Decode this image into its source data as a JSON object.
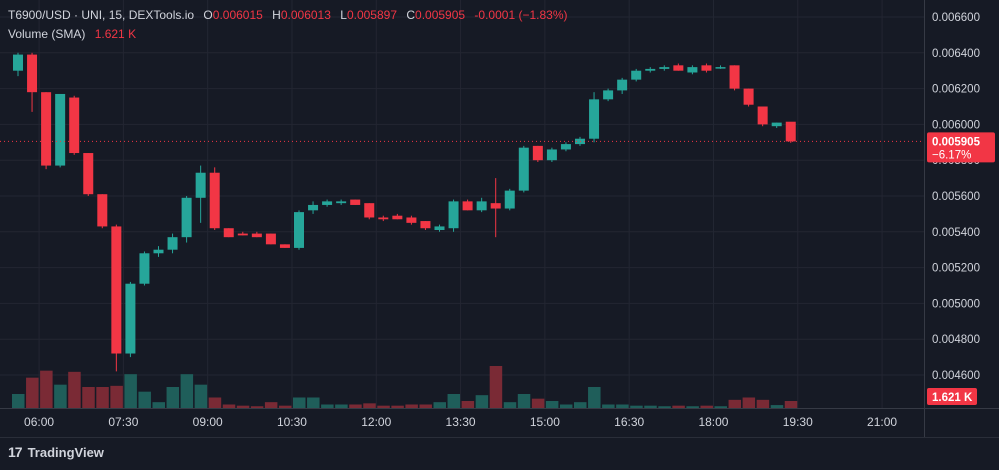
{
  "legend": {
    "symbol": "T6900/USD · UNI, 15, DEXTools.io",
    "o_label": "O",
    "o_value": "0.006015",
    "h_label": "H",
    "h_value": "0.006013",
    "l_label": "L",
    "l_value": "0.005897",
    "c_label": "C",
    "c_value": "0.005905",
    "change": "-0.0001 (−1.83%)",
    "volume_label": "Volume (SMA)",
    "volume_value": "1.621 K"
  },
  "branding": {
    "name": "TradingView",
    "icon": "tradingview-logo-icon"
  },
  "colors": {
    "up": "#26a69a",
    "down": "#f23645",
    "background": "#161a25",
    "grid": "#232632",
    "text": "#d1d4dc",
    "volume_up": "#1f5e5a",
    "volume_down": "#7a2a35"
  },
  "chart_data": {
    "type": "candlestick",
    "ylim": [
      0.0045,
      0.0066
    ],
    "y_ticks": [
      "0.004600",
      "0.004800",
      "0.005000",
      "0.005200",
      "0.005400",
      "0.005600",
      "0.005800",
      "0.006000",
      "0.006200",
      "0.006400",
      "0.006600"
    ],
    "x_ticks": [
      "06:00",
      "07:30",
      "09:00",
      "10:30",
      "12:00",
      "13:30",
      "15:00",
      "16:30",
      "18:00",
      "19:30",
      "21:00"
    ],
    "x_tick_index": [
      1.5,
      7.5,
      13.5,
      19.5,
      25.5,
      31.5,
      37.5,
      43.5,
      49.5,
      55.5,
      61.5
    ],
    "last_price_label": "0.005905",
    "last_change_label": "−6.17%",
    "volume_label": "1.621 K",
    "volume_max": 6.0,
    "candles": [
      {
        "o": 0.0063,
        "h": 0.0064,
        "l": 0.00627,
        "c": 0.00639,
        "v": 1.2
      },
      {
        "o": 0.00639,
        "h": 0.0064,
        "l": 0.00607,
        "c": 0.00618,
        "v": 2.6
      },
      {
        "o": 0.00618,
        "h": 0.00618,
        "l": 0.00575,
        "c": 0.00577,
        "v": 3.2
      },
      {
        "o": 0.00577,
        "h": 0.00617,
        "l": 0.00576,
        "c": 0.00617,
        "v": 2.0
      },
      {
        "o": 0.00615,
        "h": 0.00616,
        "l": 0.00583,
        "c": 0.00584,
        "v": 3.1
      },
      {
        "o": 0.00584,
        "h": 0.00584,
        "l": 0.0056,
        "c": 0.00561,
        "v": 1.8
      },
      {
        "o": 0.00561,
        "h": 0.00561,
        "l": 0.00542,
        "c": 0.00543,
        "v": 1.8
      },
      {
        "o": 0.00543,
        "h": 0.00544,
        "l": 0.00462,
        "c": 0.00472,
        "v": 1.9
      },
      {
        "o": 0.00472,
        "h": 0.00512,
        "l": 0.0047,
        "c": 0.00511,
        "v": 2.9
      },
      {
        "o": 0.00511,
        "h": 0.00529,
        "l": 0.0051,
        "c": 0.00528,
        "v": 1.4
      },
      {
        "o": 0.00528,
        "h": 0.00532,
        "l": 0.00526,
        "c": 0.0053,
        "v": 0.5
      },
      {
        "o": 0.0053,
        "h": 0.00539,
        "l": 0.00528,
        "c": 0.00537,
        "v": 1.8
      },
      {
        "o": 0.00537,
        "h": 0.0056,
        "l": 0.00534,
        "c": 0.00559,
        "v": 2.9
      },
      {
        "o": 0.00559,
        "h": 0.00577,
        "l": 0.00545,
        "c": 0.00573,
        "v": 2.0
      },
      {
        "o": 0.00573,
        "h": 0.00576,
        "l": 0.00541,
        "c": 0.00542,
        "v": 0.9
      },
      {
        "o": 0.00542,
        "h": 0.00542,
        "l": 0.00537,
        "c": 0.00537,
        "v": 0.3
      },
      {
        "o": 0.00539,
        "h": 0.0054,
        "l": 0.00538,
        "c": 0.00538,
        "v": 0.2
      },
      {
        "o": 0.00539,
        "h": 0.0054,
        "l": 0.00537,
        "c": 0.00537,
        "v": 0.15
      },
      {
        "o": 0.00539,
        "h": 0.00539,
        "l": 0.00533,
        "c": 0.00533,
        "v": 0.5
      },
      {
        "o": 0.00533,
        "h": 0.00533,
        "l": 0.00531,
        "c": 0.00531,
        "v": 0.2
      },
      {
        "o": 0.00531,
        "h": 0.00552,
        "l": 0.0053,
        "c": 0.00551,
        "v": 0.9
      },
      {
        "o": 0.00552,
        "h": 0.00557,
        "l": 0.0055,
        "c": 0.00555,
        "v": 0.9
      },
      {
        "o": 0.00555,
        "h": 0.00558,
        "l": 0.00554,
        "c": 0.00557,
        "v": 0.3
      },
      {
        "o": 0.00556,
        "h": 0.00558,
        "l": 0.00555,
        "c": 0.00557,
        "v": 0.3
      },
      {
        "o": 0.00558,
        "h": 0.00558,
        "l": 0.00555,
        "c": 0.00555,
        "v": 0.3
      },
      {
        "o": 0.00556,
        "h": 0.00556,
        "l": 0.00547,
        "c": 0.00548,
        "v": 0.4
      },
      {
        "o": 0.00548,
        "h": 0.00549,
        "l": 0.00546,
        "c": 0.00547,
        "v": 0.2
      },
      {
        "o": 0.00549,
        "h": 0.0055,
        "l": 0.00547,
        "c": 0.00547,
        "v": 0.2
      },
      {
        "o": 0.00548,
        "h": 0.00549,
        "l": 0.00544,
        "c": 0.00545,
        "v": 0.3
      },
      {
        "o": 0.00546,
        "h": 0.00546,
        "l": 0.00541,
        "c": 0.00542,
        "v": 0.3
      },
      {
        "o": 0.00541,
        "h": 0.00544,
        "l": 0.0054,
        "c": 0.00543,
        "v": 0.5
      },
      {
        "o": 0.00542,
        "h": 0.00558,
        "l": 0.0054,
        "c": 0.00557,
        "v": 1.2
      },
      {
        "o": 0.00557,
        "h": 0.00558,
        "l": 0.00552,
        "c": 0.00552,
        "v": 0.6
      },
      {
        "o": 0.00552,
        "h": 0.00559,
        "l": 0.00551,
        "c": 0.00557,
        "v": 1.1
      },
      {
        "o": 0.00556,
        "h": 0.0057,
        "l": 0.00537,
        "c": 0.00553,
        "v": 3.6
      },
      {
        "o": 0.00553,
        "h": 0.00564,
        "l": 0.00552,
        "c": 0.00563,
        "v": 0.5
      },
      {
        "o": 0.00563,
        "h": 0.00588,
        "l": 0.00562,
        "c": 0.00587,
        "v": 1.2
      },
      {
        "o": 0.00588,
        "h": 0.00588,
        "l": 0.00579,
        "c": 0.0058,
        "v": 0.8
      },
      {
        "o": 0.0058,
        "h": 0.00587,
        "l": 0.00579,
        "c": 0.00586,
        "v": 0.6
      },
      {
        "o": 0.00586,
        "h": 0.0059,
        "l": 0.00585,
        "c": 0.00589,
        "v": 0.3
      },
      {
        "o": 0.00589,
        "h": 0.00593,
        "l": 0.00588,
        "c": 0.00592,
        "v": 0.5
      },
      {
        "o": 0.00592,
        "h": 0.00618,
        "l": 0.0059,
        "c": 0.00614,
        "v": 1.8
      },
      {
        "o": 0.00614,
        "h": 0.0062,
        "l": 0.00613,
        "c": 0.00619,
        "v": 0.3
      },
      {
        "o": 0.00619,
        "h": 0.00626,
        "l": 0.00617,
        "c": 0.00625,
        "v": 0.3
      },
      {
        "o": 0.00625,
        "h": 0.00631,
        "l": 0.00624,
        "c": 0.0063,
        "v": 0.2
      },
      {
        "o": 0.0063,
        "h": 0.00632,
        "l": 0.00629,
        "c": 0.00631,
        "v": 0.2
      },
      {
        "o": 0.00631,
        "h": 0.00633,
        "l": 0.0063,
        "c": 0.00632,
        "v": 0.15
      },
      {
        "o": 0.00633,
        "h": 0.00634,
        "l": 0.0063,
        "c": 0.0063,
        "v": 0.2
      },
      {
        "o": 0.00629,
        "h": 0.00633,
        "l": 0.00628,
        "c": 0.00632,
        "v": 0.15
      },
      {
        "o": 0.00633,
        "h": 0.00634,
        "l": 0.00629,
        "c": 0.0063,
        "v": 0.2
      },
      {
        "o": 0.00632,
        "h": 0.00633,
        "l": 0.00631,
        "c": 0.00632,
        "v": 0.15
      },
      {
        "o": 0.00633,
        "h": 0.00633,
        "l": 0.00619,
        "c": 0.0062,
        "v": 0.7
      },
      {
        "o": 0.0062,
        "h": 0.0062,
        "l": 0.0061,
        "c": 0.00611,
        "v": 0.9
      },
      {
        "o": 0.0061,
        "h": 0.0061,
        "l": 0.00599,
        "c": 0.006,
        "v": 0.7
      },
      {
        "o": 0.00599,
        "h": 0.00601,
        "l": 0.00598,
        "c": 0.00601,
        "v": 0.25
      },
      {
        "o": 0.006015,
        "h": 0.006013,
        "l": 0.005897,
        "c": 0.005905,
        "v": 0.6
      }
    ]
  }
}
